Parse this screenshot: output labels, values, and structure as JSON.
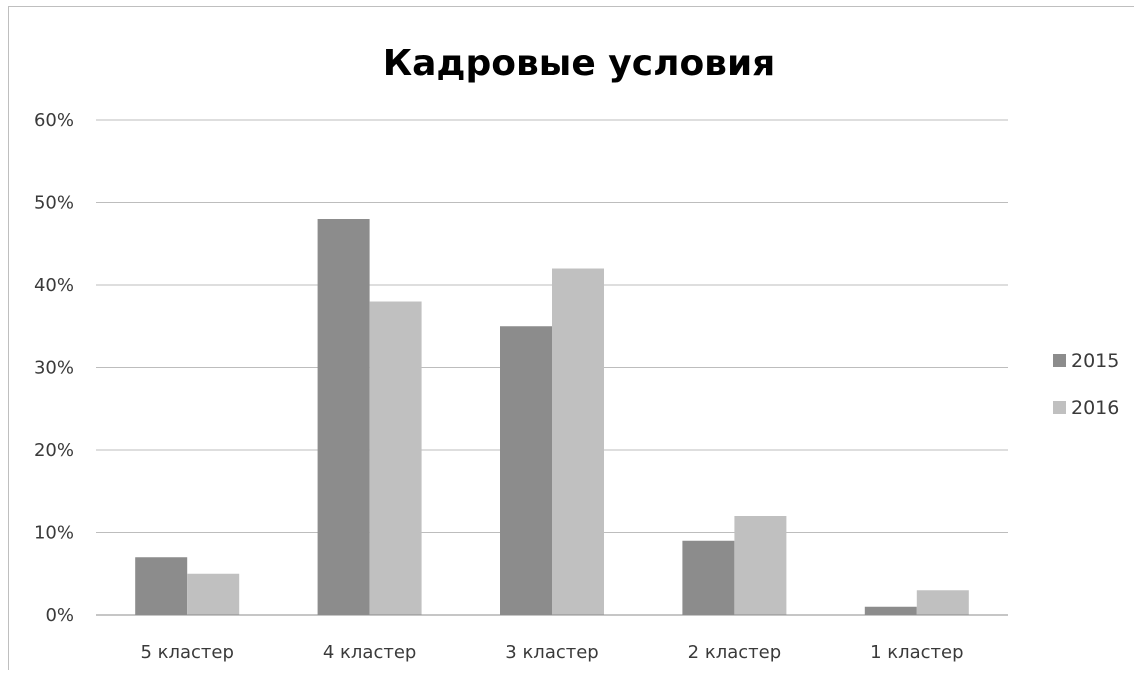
{
  "chart_data": {
    "type": "bar",
    "title": "Кадровые условия",
    "xlabel": "",
    "ylabel": "",
    "categories": [
      "5 кластер",
      "4 кластер",
      "3 кластер",
      "2 кластер",
      "1 кластер"
    ],
    "series": [
      {
        "name": "2015",
        "color": "#8c8c8c",
        "values": [
          7,
          48,
          35,
          9,
          1
        ]
      },
      {
        "name": "2016",
        "color": "#c0c0c0",
        "values": [
          5,
          38,
          42,
          12,
          3
        ]
      }
    ],
    "ylim": [
      0,
      60
    ],
    "yticks": [
      0,
      10,
      20,
      30,
      40,
      50,
      60
    ],
    "ytick_labels": [
      "0%",
      "10%",
      "20%",
      "30%",
      "40%",
      "50%",
      "60%"
    ],
    "grid": true,
    "legend_position": "right"
  }
}
